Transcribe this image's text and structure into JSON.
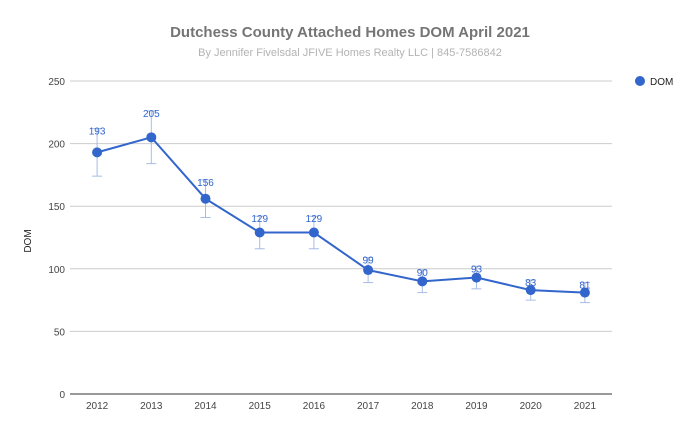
{
  "chart_data": {
    "type": "line",
    "title": "Dutchess County Attached Homes DOM April 2021",
    "subtitle": "By Jennifer Fivelsdal JFIVE Homes Realty LLC | 845-7586842",
    "xlabel": "",
    "ylabel": "DOM",
    "ylim": [
      0,
      250
    ],
    "yticks": [
      0,
      50,
      100,
      150,
      200,
      250
    ],
    "grid": true,
    "legend_position": "right",
    "categories": [
      "2012",
      "2013",
      "2014",
      "2015",
      "2016",
      "2017",
      "2018",
      "2019",
      "2020",
      "2021"
    ],
    "series": [
      {
        "name": "DOM",
        "color": "#3366cc",
        "values": [
          193,
          205,
          156,
          129,
          129,
          99,
          90,
          93,
          83,
          81
        ],
        "error_low": [
          174,
          184,
          141,
          116,
          116,
          89,
          81,
          84,
          75,
          73
        ],
        "error_high": [
          212,
          226,
          171,
          142,
          142,
          109,
          99,
          102,
          91,
          89
        ]
      }
    ]
  }
}
